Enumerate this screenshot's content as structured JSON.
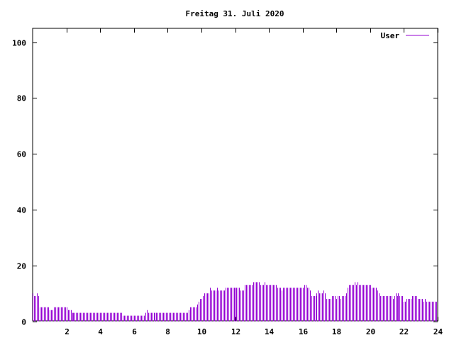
{
  "chart_data": {
    "type": "bar",
    "style": "impulses",
    "title": "Freitag 31. Juli 2020",
    "xlabel": "",
    "ylabel": "",
    "xlim": [
      0,
      24
    ],
    "ylim": [
      0,
      105
    ],
    "xticks": [
      2,
      4,
      6,
      8,
      10,
      12,
      14,
      16,
      18,
      20,
      22,
      24
    ],
    "yticks": [
      0,
      20,
      40,
      60,
      80,
      100
    ],
    "x_step_hours": 0.0833333,
    "grid": false,
    "legend": "top-right",
    "series": [
      {
        "name": "User",
        "color": "#9400d3",
        "values": [
          10,
          9,
          9,
          10,
          9,
          5,
          5,
          5,
          5,
          5,
          5,
          5,
          4,
          4,
          4,
          5,
          5,
          5,
          5,
          5,
          5,
          5,
          5,
          5,
          5,
          4,
          4,
          4,
          3,
          3,
          3,
          3,
          3,
          3,
          3,
          3,
          3,
          3,
          3,
          3,
          3,
          3,
          3,
          3,
          3,
          3,
          3,
          3,
          3,
          3,
          3,
          3,
          3,
          3,
          3,
          3,
          3,
          3,
          3,
          3,
          3,
          3,
          3,
          3,
          2,
          2,
          2,
          2,
          2,
          2,
          2,
          2,
          2,
          2,
          2,
          2,
          2,
          2,
          2,
          2,
          3,
          4,
          3,
          3,
          3,
          3,
          3,
          3,
          3,
          3,
          3,
          3,
          3,
          3,
          3,
          3,
          3,
          3,
          3,
          3,
          3,
          3,
          3,
          3,
          3,
          3,
          3,
          3,
          3,
          3,
          3,
          4,
          5,
          5,
          5,
          5,
          5,
          6,
          7,
          8,
          8,
          9,
          10,
          10,
          10,
          10,
          12,
          11,
          11,
          11,
          11,
          12,
          11,
          11,
          11,
          11,
          11,
          12,
          12,
          12,
          12,
          12,
          12,
          12,
          12,
          12,
          12,
          12,
          11,
          11,
          11,
          13,
          13,
          13,
          13,
          13,
          13,
          14,
          14,
          14,
          14,
          14,
          13,
          13,
          13,
          14,
          13,
          13,
          13,
          13,
          13,
          13,
          13,
          13,
          12,
          12,
          12,
          11,
          12,
          12,
          12,
          12,
          12,
          12,
          12,
          12,
          12,
          12,
          12,
          12,
          12,
          12,
          12,
          13,
          13,
          12,
          12,
          11,
          9,
          9,
          9,
          9,
          10,
          11,
          10,
          10,
          10,
          11,
          10,
          8,
          8,
          8,
          8,
          9,
          9,
          9,
          8,
          9,
          9,
          8,
          9,
          9,
          9,
          10,
          12,
          13,
          13,
          13,
          13,
          14,
          13,
          14,
          13,
          13,
          13,
          13,
          13,
          13,
          13,
          13,
          13,
          12,
          12,
          12,
          12,
          11,
          10,
          9,
          9,
          9,
          9,
          9,
          9,
          9,
          9,
          9,
          8,
          9,
          10,
          9,
          10,
          9,
          9,
          9,
          7,
          7,
          8,
          8,
          8,
          8,
          9,
          9,
          9,
          9,
          8,
          8,
          8,
          8,
          7,
          8,
          7,
          7,
          7,
          7,
          7,
          7,
          7,
          7
        ]
      }
    ]
  }
}
